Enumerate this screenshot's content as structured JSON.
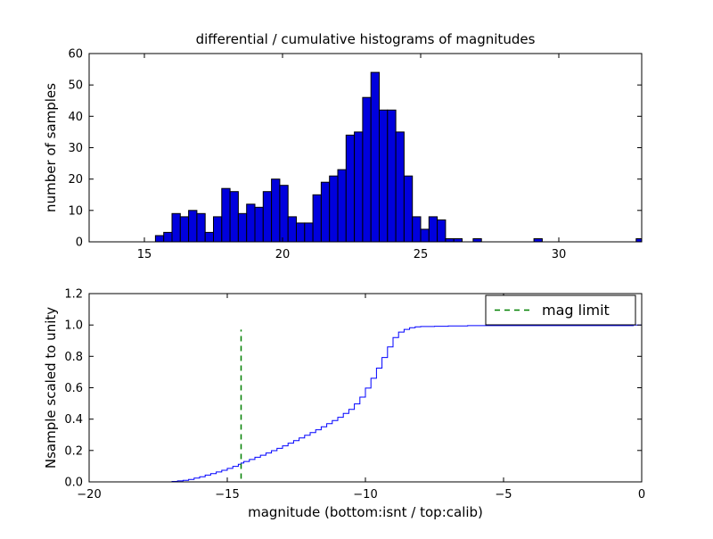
{
  "figure": {
    "background": "#ffffff",
    "text_color": "#000000"
  },
  "chart_data": [
    {
      "type": "bar",
      "name": "differential-histogram",
      "title": "differential / cumulative histograms of magnitudes",
      "xlabel": "",
      "ylabel": "number of samples",
      "xlim": [
        13,
        33
      ],
      "ylim": [
        0,
        60
      ],
      "xticks": [
        15,
        20,
        25,
        30
      ],
      "xtick_labels": [
        "15",
        "20",
        "25",
        "30"
      ],
      "yticks": [
        0,
        10,
        20,
        30,
        40,
        50,
        60
      ],
      "ytick_labels": [
        "0",
        "10",
        "20",
        "30",
        "40",
        "50",
        "60"
      ],
      "grid": false,
      "bar_fill": "#0000dd",
      "bar_edge": "#000000",
      "bin_start": 15.4,
      "bin_width": 0.3,
      "counts": [
        2,
        3,
        9,
        8,
        10,
        9,
        3,
        8,
        17,
        16,
        9,
        12,
        11,
        16,
        20,
        18,
        8,
        6,
        6,
        15,
        19,
        21,
        23,
        34,
        35,
        46,
        54,
        42,
        42,
        35,
        21,
        8,
        4,
        8,
        7,
        1,
        1
      ],
      "extra_bars": [
        {
          "x": 26.9,
          "count": 1
        },
        {
          "x": 29.1,
          "count": 1
        },
        {
          "x": 32.8,
          "count": 1
        }
      ]
    },
    {
      "type": "line",
      "name": "cumulative-histogram",
      "xlabel": "magnitude (bottom:isnt / top:calib)",
      "ylabel": "Nsample scaled to unity",
      "xlim": [
        -20,
        0
      ],
      "ylim": [
        0,
        1.2
      ],
      "xticks": [
        -20,
        -15,
        -10,
        -5,
        0
      ],
      "xtick_labels": [
        "−20",
        "−15",
        "−10",
        "−5",
        "0"
      ],
      "yticks": [
        0.0,
        0.2,
        0.4,
        0.6,
        0.8,
        1.0,
        1.2
      ],
      "ytick_labels": [
        "0.0",
        "0.2",
        "0.4",
        "0.6",
        "0.8",
        "1.0",
        "1.2"
      ],
      "grid": false,
      "line_color": "#0000ff",
      "step_points": [
        [
          -17.0,
          0.003
        ],
        [
          -16.8,
          0.006
        ],
        [
          -16.6,
          0.01
        ],
        [
          -16.4,
          0.016
        ],
        [
          -16.2,
          0.024
        ],
        [
          -16.0,
          0.033
        ],
        [
          -15.8,
          0.043
        ],
        [
          -15.6,
          0.053
        ],
        [
          -15.4,
          0.063
        ],
        [
          -15.2,
          0.074
        ],
        [
          -15.0,
          0.086
        ],
        [
          -14.8,
          0.099
        ],
        [
          -14.6,
          0.112
        ],
        [
          -14.5,
          0.12
        ],
        [
          -14.4,
          0.13
        ],
        [
          -14.2,
          0.143
        ],
        [
          -14.0,
          0.157
        ],
        [
          -13.8,
          0.17
        ],
        [
          -13.6,
          0.184
        ],
        [
          -13.4,
          0.199
        ],
        [
          -13.2,
          0.214
        ],
        [
          -13.0,
          0.23
        ],
        [
          -12.8,
          0.247
        ],
        [
          -12.6,
          0.263
        ],
        [
          -12.4,
          0.28
        ],
        [
          -12.2,
          0.297
        ],
        [
          -12.0,
          0.314
        ],
        [
          -11.8,
          0.332
        ],
        [
          -11.6,
          0.351
        ],
        [
          -11.4,
          0.371
        ],
        [
          -11.2,
          0.391
        ],
        [
          -11.0,
          0.412
        ],
        [
          -10.8,
          0.436
        ],
        [
          -10.6,
          0.462
        ],
        [
          -10.4,
          0.497
        ],
        [
          -10.2,
          0.54
        ],
        [
          -10.0,
          0.598
        ],
        [
          -9.8,
          0.66
        ],
        [
          -9.6,
          0.725
        ],
        [
          -9.4,
          0.793
        ],
        [
          -9.2,
          0.86
        ],
        [
          -9.0,
          0.92
        ],
        [
          -8.8,
          0.955
        ],
        [
          -8.6,
          0.972
        ],
        [
          -8.4,
          0.982
        ],
        [
          -8.2,
          0.988
        ],
        [
          -8.0,
          0.99
        ],
        [
          -7.5,
          0.992
        ],
        [
          -7.0,
          0.994
        ],
        [
          -6.3,
          0.996
        ],
        [
          -0.3,
          1.0
        ]
      ],
      "mag_limit_line": {
        "x": -14.5,
        "y_span": [
          0.02,
          0.97
        ],
        "color": "#008000",
        "style": "dashed"
      },
      "legend": {
        "position": "upper right",
        "entries": [
          {
            "label": "mag limit",
            "color": "#008000",
            "style": "dashed"
          }
        ]
      }
    }
  ]
}
